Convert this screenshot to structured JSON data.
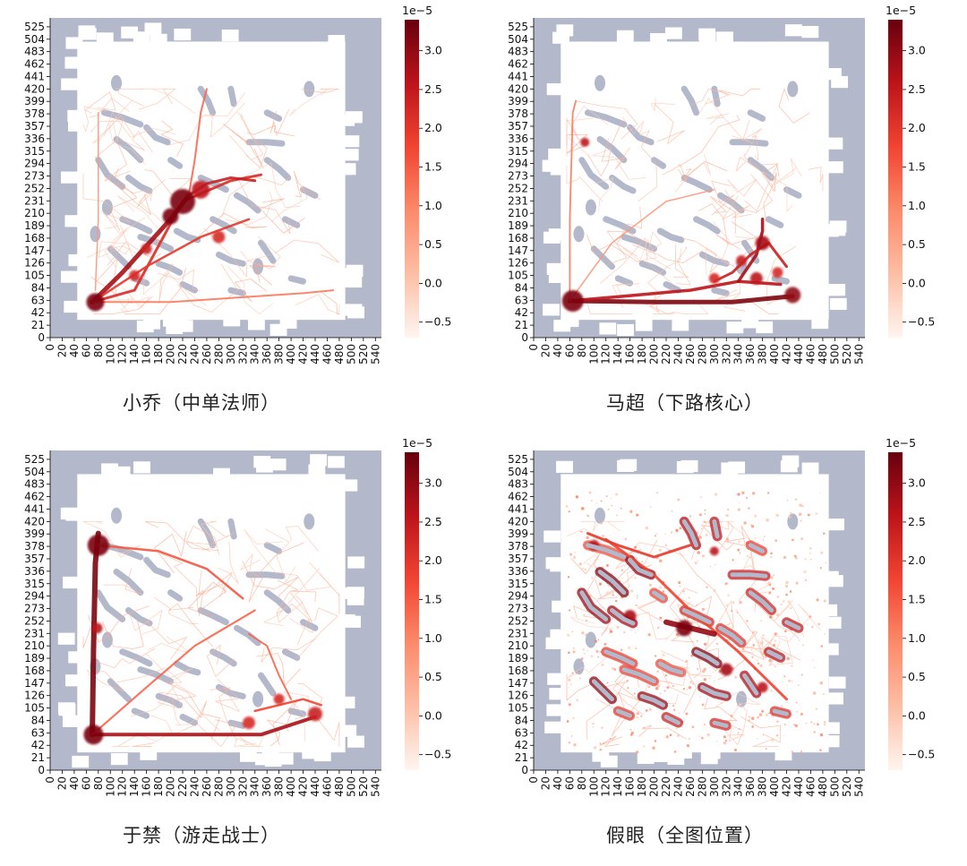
{
  "chart_data": [
    {
      "type": "heatmap",
      "title": "小乔（中单法师）",
      "colormap": "Reds",
      "pattern": "mid",
      "xticks": [
        0,
        20,
        40,
        60,
        80,
        100,
        120,
        140,
        160,
        180,
        200,
        220,
        240,
        260,
        280,
        300,
        320,
        340,
        360,
        380,
        400,
        420,
        440,
        460,
        480,
        500,
        520,
        540
      ],
      "yticks": [
        0,
        21,
        42,
        63,
        84,
        105,
        126,
        147,
        168,
        189,
        210,
        231,
        252,
        273,
        294,
        315,
        336,
        357,
        378,
        399,
        420,
        441,
        462,
        483,
        504,
        525
      ],
      "xlim": [
        0,
        550
      ],
      "ylim": [
        0,
        540
      ],
      "colorbar": {
        "multiplier": "1e−5",
        "ticks": [
          "3.0",
          "2.5",
          "2.0",
          "1.5",
          "1.0",
          "0.5",
          "0.0",
          "−0.5"
        ],
        "range": [
          -0.7,
          3.4
        ]
      }
    },
    {
      "type": "heatmap",
      "title": "马超（下路核心）",
      "colormap": "Reds",
      "pattern": "bot",
      "xticks": [
        0,
        20,
        40,
        60,
        80,
        100,
        120,
        140,
        160,
        180,
        200,
        220,
        240,
        260,
        280,
        300,
        320,
        340,
        360,
        380,
        400,
        420,
        440,
        460,
        480,
        500,
        520,
        540
      ],
      "yticks": [
        0,
        21,
        42,
        63,
        84,
        105,
        126,
        147,
        168,
        189,
        210,
        231,
        252,
        273,
        294,
        315,
        336,
        357,
        378,
        399,
        420,
        441,
        462,
        483,
        504,
        525
      ],
      "xlim": [
        0,
        550
      ],
      "ylim": [
        0,
        540
      ],
      "colorbar": {
        "multiplier": "1e−5",
        "ticks": [
          "3.0",
          "2.5",
          "2.0",
          "1.5",
          "1.0",
          "0.5",
          "0.0",
          "−0.5"
        ],
        "range": [
          -0.7,
          3.4
        ]
      }
    },
    {
      "type": "heatmap",
      "title": "于禁（游走战士）",
      "colormap": "Reds",
      "pattern": "roam",
      "xticks": [
        0,
        20,
        40,
        60,
        80,
        100,
        120,
        140,
        160,
        180,
        200,
        220,
        240,
        260,
        280,
        300,
        320,
        340,
        360,
        380,
        400,
        420,
        440,
        460,
        480,
        500,
        520,
        540
      ],
      "yticks": [
        0,
        21,
        42,
        63,
        84,
        105,
        126,
        147,
        168,
        189,
        210,
        231,
        252,
        273,
        294,
        315,
        336,
        357,
        378,
        399,
        420,
        441,
        462,
        483,
        504,
        525
      ],
      "xlim": [
        0,
        550
      ],
      "ylim": [
        0,
        540
      ],
      "colorbar": {
        "multiplier": "1e−5",
        "ticks": [
          "3.0",
          "2.5",
          "2.0",
          "1.5",
          "1.0",
          "0.5",
          "0.0",
          "−0.5"
        ],
        "range": [
          -0.7,
          3.4
        ]
      }
    },
    {
      "type": "heatmap",
      "title": "假眼（全图位置）",
      "colormap": "Reds",
      "pattern": "ward",
      "xticks": [
        0,
        20,
        40,
        60,
        80,
        100,
        120,
        140,
        160,
        180,
        200,
        220,
        240,
        260,
        280,
        300,
        320,
        340,
        360,
        380,
        400,
        420,
        440,
        460,
        480,
        500,
        520,
        540
      ],
      "yticks": [
        0,
        21,
        42,
        63,
        84,
        105,
        126,
        147,
        168,
        189,
        210,
        231,
        252,
        273,
        294,
        315,
        336,
        357,
        378,
        399,
        420,
        441,
        462,
        483,
        504,
        525
      ],
      "xlim": [
        0,
        550
      ],
      "ylim": [
        0,
        540
      ],
      "colorbar": {
        "multiplier": "1e−5",
        "ticks": [
          "3.0",
          "2.5",
          "2.0",
          "1.5",
          "1.0",
          "0.5",
          "0.0",
          "−0.5"
        ],
        "range": [
          -0.7,
          3.4
        ]
      }
    }
  ]
}
